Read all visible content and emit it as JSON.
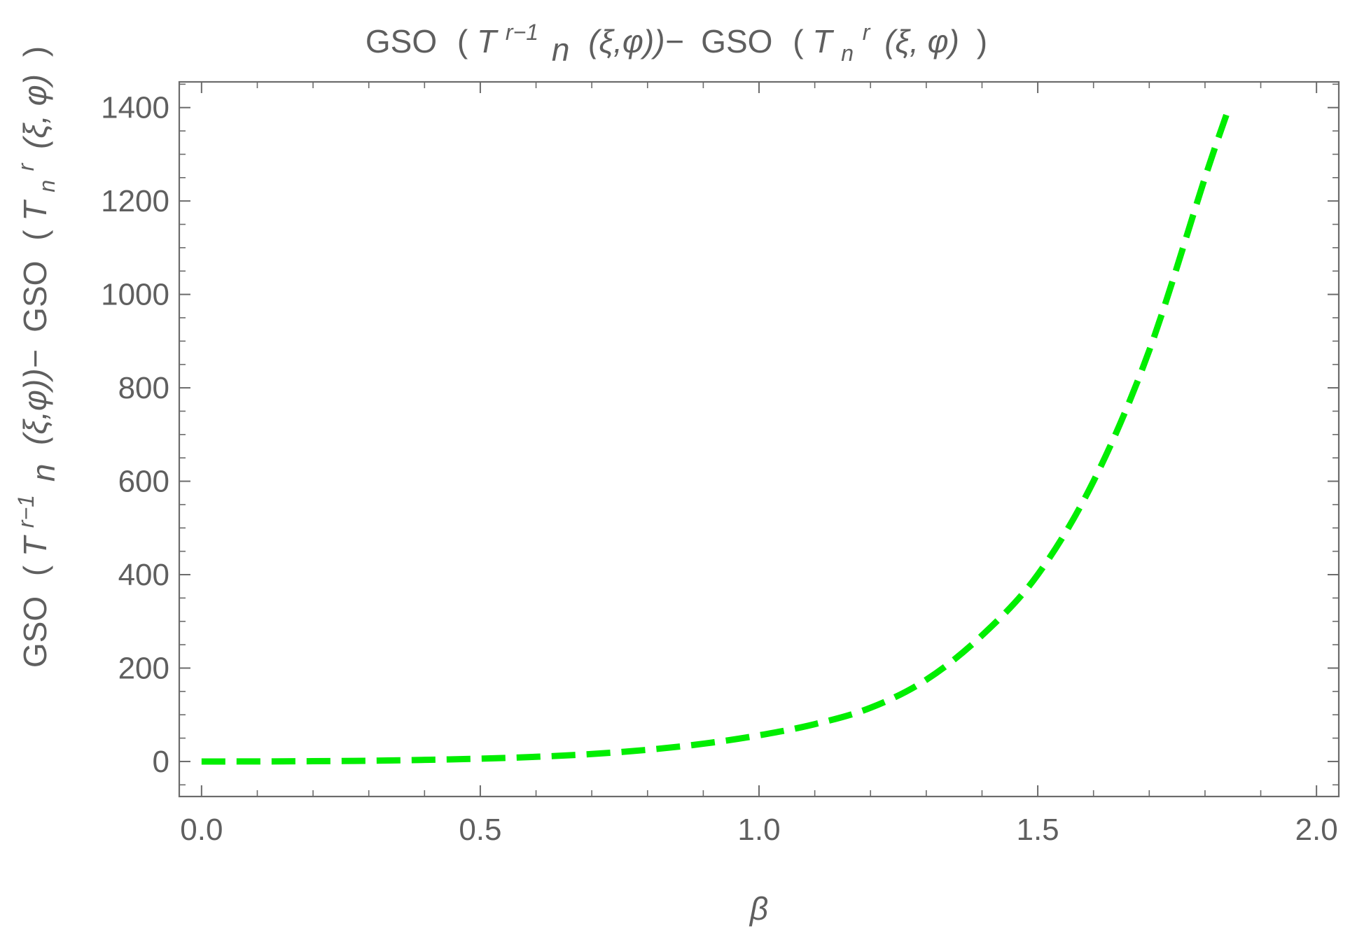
{
  "chart_data": {
    "type": "line",
    "title": {
      "gso1": "GSO",
      "lp1": "(",
      "T1": "T",
      "sup1": "r−1",
      "sub1": "n",
      "args1": "(ξ,φ))−",
      "gso2": "GSO",
      "lp2": "(",
      "T2": "T",
      "sub2": "n",
      "sup2": "r",
      "args2": "(ξ, φ)",
      "rp2": ")"
    },
    "ylabel": {
      "gso1": "GSO",
      "lp1": "(",
      "T1": "T",
      "sup1": "r−1",
      "sub1": "n",
      "args1": "(ξ,φ))−",
      "gso2": "GSO",
      "lp2": "(",
      "T2": "T",
      "sub2": "n",
      "sup2": "r",
      "args2": "(ξ, φ)",
      "rp2": ")"
    },
    "xlabel": "β",
    "xlim": [
      -0.04,
      2.04
    ],
    "ylim": [
      -75,
      1455
    ],
    "x_ticks": [
      0.0,
      0.5,
      1.0,
      1.5,
      2.0
    ],
    "x_tick_labels": [
      "0.0",
      "0.5",
      "1.0",
      "1.5",
      "2.0"
    ],
    "y_ticks": [
      0,
      200,
      400,
      600,
      800,
      1000,
      1200,
      1400
    ],
    "y_tick_labels": [
      "0",
      "200",
      "400",
      "600",
      "800",
      "1000",
      "1200",
      "1400"
    ],
    "grid": false,
    "series": [
      {
        "line_style": "dashed",
        "color": "#00ee00",
        "x": [
          0.0,
          0.1,
          0.2,
          0.3,
          0.4,
          0.5,
          0.6,
          0.7,
          0.8,
          0.9,
          1.0,
          1.1,
          1.2,
          1.3,
          1.4,
          1.5,
          1.6,
          1.7,
          1.8,
          1.84
        ],
        "y": [
          0,
          0.1,
          0.6,
          1.5,
          3.5,
          6,
          10,
          16,
          25,
          38,
          56,
          80,
          115,
          175,
          270,
          400,
          600,
          880,
          1250,
          1390
        ]
      }
    ]
  }
}
